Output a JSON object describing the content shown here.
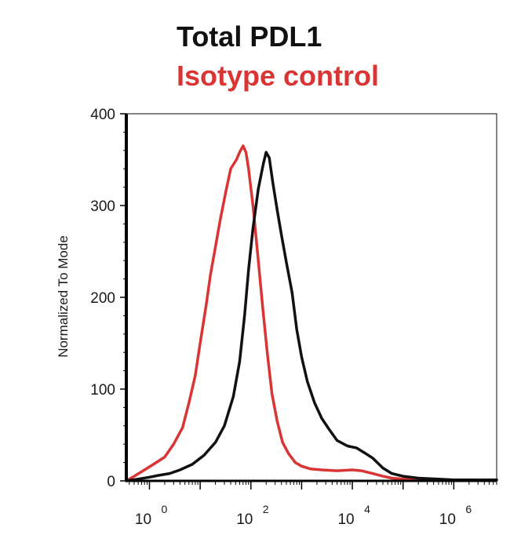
{
  "chart_data": {
    "type": "line",
    "title": "",
    "xlabel": "",
    "ylabel": "Normalized To Mode",
    "x_scale": "log",
    "xlim": [
      0.35,
      7000000
    ],
    "ylim": [
      0,
      400
    ],
    "x_tick_labels": [
      {
        "base": "10",
        "exp": "0",
        "value": 1
      },
      {
        "base": "10",
        "exp": "2",
        "value": 100
      },
      {
        "base": "10",
        "exp": "4",
        "value": 10000
      },
      {
        "base": "10",
        "exp": "6",
        "value": 1000000
      }
    ],
    "y_ticks": [
      0,
      100,
      200,
      300,
      400
    ],
    "grid": false,
    "legend": "top-left",
    "series": [
      {
        "name": "Total PDL1",
        "color": "#111111",
        "points": [
          [
            0.35,
            0
          ],
          [
            0.6,
            2
          ],
          [
            1.0,
            4
          ],
          [
            1.5,
            6
          ],
          [
            2.5,
            8
          ],
          [
            4,
            12
          ],
          [
            7,
            18
          ],
          [
            12,
            28
          ],
          [
            20,
            42
          ],
          [
            30,
            60
          ],
          [
            45,
            92
          ],
          [
            60,
            130
          ],
          [
            75,
            180
          ],
          [
            90,
            230
          ],
          [
            110,
            275
          ],
          [
            140,
            318
          ],
          [
            175,
            345
          ],
          [
            200,
            358
          ],
          [
            230,
            352
          ],
          [
            270,
            325
          ],
          [
            330,
            295
          ],
          [
            400,
            268
          ],
          [
            500,
            238
          ],
          [
            650,
            205
          ],
          [
            800,
            165
          ],
          [
            1000,
            135
          ],
          [
            1300,
            108
          ],
          [
            1800,
            85
          ],
          [
            2500,
            68
          ],
          [
            3500,
            56
          ],
          [
            5000,
            44
          ],
          [
            8000,
            38
          ],
          [
            12000,
            36
          ],
          [
            18000,
            30
          ],
          [
            25000,
            25
          ],
          [
            40000,
            14
          ],
          [
            60000,
            8
          ],
          [
            100000,
            5
          ],
          [
            200000,
            3
          ],
          [
            500000,
            2
          ],
          [
            1000000,
            1
          ],
          [
            3000000,
            1
          ],
          [
            7000000,
            1
          ]
        ]
      },
      {
        "name": "Isotype control",
        "color": "#d93535",
        "points": [
          [
            0.35,
            0
          ],
          [
            0.5,
            5
          ],
          [
            0.8,
            12
          ],
          [
            1.2,
            18
          ],
          [
            2,
            26
          ],
          [
            3,
            40
          ],
          [
            4.5,
            58
          ],
          [
            6,
            85
          ],
          [
            8,
            115
          ],
          [
            10,
            150
          ],
          [
            13,
            190
          ],
          [
            16,
            225
          ],
          [
            20,
            255
          ],
          [
            25,
            285
          ],
          [
            32,
            315
          ],
          [
            40,
            340
          ],
          [
            52,
            350
          ],
          [
            60,
            358
          ],
          [
            70,
            365
          ],
          [
            80,
            358
          ],
          [
            90,
            340
          ],
          [
            110,
            300
          ],
          [
            140,
            240
          ],
          [
            170,
            190
          ],
          [
            210,
            140
          ],
          [
            260,
            95
          ],
          [
            330,
            65
          ],
          [
            420,
            42
          ],
          [
            550,
            30
          ],
          [
            750,
            20
          ],
          [
            1000,
            16
          ],
          [
            1500,
            13
          ],
          [
            2500,
            12
          ],
          [
            5000,
            11
          ],
          [
            10000,
            12
          ],
          [
            15000,
            11
          ],
          [
            25000,
            8
          ],
          [
            40000,
            5
          ],
          [
            60000,
            3
          ],
          [
            100000,
            2
          ],
          [
            300000,
            1
          ],
          [
            1000000,
            1
          ],
          [
            7000000,
            1
          ]
        ]
      }
    ]
  }
}
